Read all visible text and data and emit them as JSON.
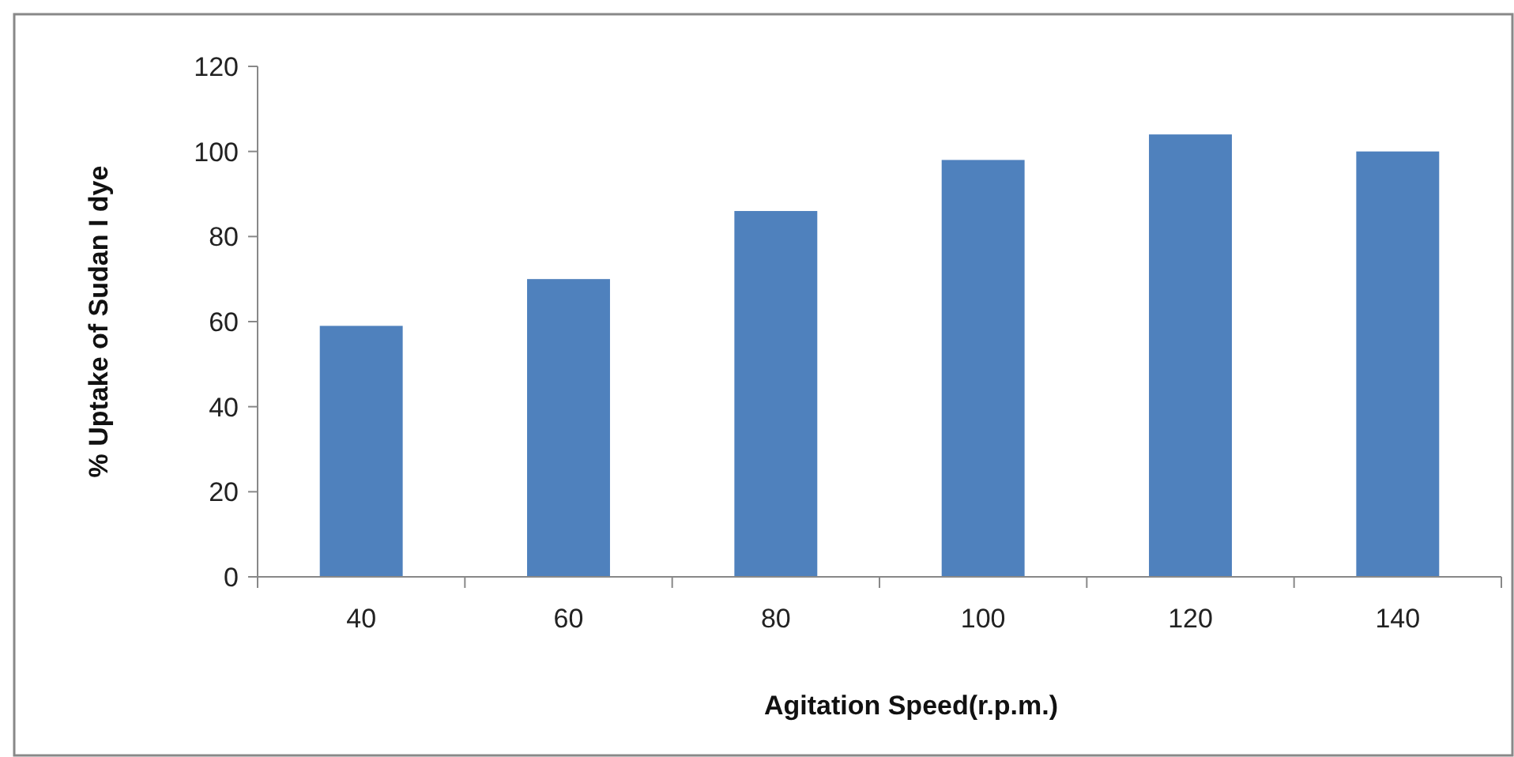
{
  "chart_data": {
    "type": "bar",
    "xlabel": "Agitation Speed(r.p.m.)",
    "ylabel": "% Uptake of Sudan I dye",
    "categories": [
      "40",
      "60",
      "80",
      "100",
      "120",
      "140"
    ],
    "values": [
      59,
      70,
      86,
      98,
      104,
      100
    ],
    "color": "#4f81bd",
    "ylim": [
      0,
      120
    ],
    "yticks": [
      0,
      20,
      40,
      60,
      80,
      100,
      120
    ],
    "grid": false
  }
}
